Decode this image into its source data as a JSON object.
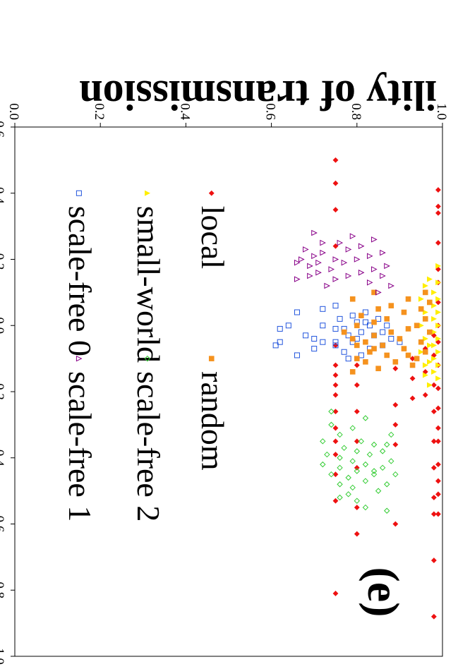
{
  "chart_data": {
    "type": "scatter",
    "orientation": "rotated-90-clockwise",
    "panel_label": "(e)",
    "ylabel": "ility of transmission",
    "xlabel": "",
    "xlim": [
      -0.6,
      1.0
    ],
    "ylim": [
      0.0,
      1.0
    ],
    "x_ticks": [
      "-0.6",
      "-0.4",
      "-0.2",
      "0.0",
      "0.2",
      "0.4",
      "0.6",
      "0.8",
      "1.0"
    ],
    "y_ticks": [
      "0.0",
      "0.2",
      "0.4",
      "0.6",
      "0.8",
      "1.0"
    ],
    "grid": false,
    "legend_position": "inside-lower-area",
    "series": [
      {
        "name": "local",
        "color": "#ee1111",
        "marker": "diamond-filled",
        "points": [
          [
            -0.41,
            0.99
          ],
          [
            -0.36,
            0.99
          ],
          [
            -0.34,
            0.99
          ],
          [
            -0.25,
            0.99
          ],
          [
            -0.17,
            0.99
          ],
          [
            -0.13,
            0.99
          ],
          [
            -0.07,
            0.99
          ],
          [
            0.0,
            0.99
          ],
          [
            0.05,
            0.99
          ],
          [
            0.12,
            0.99
          ],
          [
            0.19,
            0.99
          ],
          [
            0.25,
            0.99
          ],
          [
            0.31,
            0.99
          ],
          [
            0.35,
            0.99
          ],
          [
            0.42,
            0.99
          ],
          [
            0.47,
            0.99
          ],
          [
            0.51,
            0.99
          ],
          [
            0.57,
            0.99
          ],
          [
            0.03,
            0.98
          ],
          [
            0.09,
            0.98
          ],
          [
            0.18,
            0.98
          ],
          [
            0.26,
            0.98
          ],
          [
            0.35,
            0.98
          ],
          [
            0.43,
            0.98
          ],
          [
            0.52,
            0.98
          ],
          [
            0.57,
            0.98
          ],
          [
            0.71,
            0.98
          ],
          [
            0.88,
            0.98
          ],
          [
            0.07,
            0.96
          ],
          [
            0.14,
            0.96
          ],
          [
            0.21,
            0.96
          ],
          [
            0.1,
            0.93
          ],
          [
            0.16,
            0.93
          ],
          [
            0.22,
            0.93
          ],
          [
            0.13,
            0.89
          ],
          [
            0.24,
            0.89
          ],
          [
            0.3,
            0.89
          ],
          [
            0.36,
            0.89
          ],
          [
            0.6,
            0.89
          ],
          [
            0.12,
            0.8
          ],
          [
            0.18,
            0.8
          ],
          [
            0.26,
            0.8
          ],
          [
            0.35,
            0.8
          ],
          [
            0.43,
            0.8
          ],
          [
            0.55,
            0.8
          ],
          [
            0.63,
            0.8
          ],
          [
            -0.5,
            0.75
          ],
          [
            -0.43,
            0.75
          ],
          [
            -0.35,
            0.75
          ],
          [
            -0.24,
            0.75
          ],
          [
            0.06,
            0.75
          ],
          [
            0.12,
            0.75
          ],
          [
            0.15,
            0.75
          ],
          [
            0.18,
            0.75
          ],
          [
            0.21,
            0.75
          ],
          [
            0.26,
            0.75
          ],
          [
            0.31,
            0.75
          ],
          [
            0.35,
            0.75
          ],
          [
            0.39,
            0.75
          ],
          [
            0.45,
            0.75
          ],
          [
            0.53,
            0.75
          ],
          [
            0.81,
            0.75
          ]
        ]
      },
      {
        "name": "small-world",
        "color": "#ffee00",
        "marker": "triangle-filled",
        "points": [
          [
            -0.13,
            0.99
          ],
          [
            -0.1,
            0.98
          ],
          [
            -0.08,
            0.99
          ],
          [
            -0.06,
            0.98
          ],
          [
            -0.04,
            0.99
          ],
          [
            -0.02,
            0.98
          ],
          [
            0.0,
            0.99
          ],
          [
            0.02,
            0.98
          ],
          [
            0.04,
            0.99
          ],
          [
            0.06,
            0.98
          ],
          [
            0.08,
            0.99
          ],
          [
            0.1,
            0.98
          ],
          [
            0.12,
            0.99
          ],
          [
            0.14,
            0.98
          ],
          [
            0.16,
            0.99
          ],
          [
            0.18,
            0.97
          ],
          [
            -0.12,
            0.96
          ],
          [
            -0.08,
            0.95
          ],
          [
            -0.04,
            0.96
          ],
          [
            0.0,
            0.95
          ],
          [
            0.04,
            0.96
          ],
          [
            0.08,
            0.95
          ],
          [
            0.12,
            0.96
          ],
          [
            -0.14,
            0.97
          ],
          [
            0.15,
            0.96
          ],
          [
            -0.18,
            0.99
          ],
          [
            -0.02,
            0.96
          ],
          [
            0.06,
            0.97
          ],
          [
            0.11,
            0.97
          ]
        ]
      },
      {
        "name": "scale-free 0",
        "color": "#2255dd",
        "marker": "square-open",
        "points": [
          [
            0.04,
            0.88
          ],
          [
            0.06,
            0.86
          ],
          [
            0.03,
            0.84
          ],
          [
            0.0,
            0.83
          ],
          [
            -0.02,
            0.85
          ],
          [
            0.02,
            0.81
          ],
          [
            -0.04,
            0.82
          ],
          [
            0.05,
            0.79
          ],
          [
            0.07,
            0.83
          ],
          [
            0.09,
            0.81
          ],
          [
            0.01,
            0.77
          ],
          [
            -0.01,
            0.8
          ],
          [
            0.08,
            0.77
          ],
          [
            0.06,
            0.75
          ],
          [
            0.03,
            0.78
          ],
          [
            -0.03,
            0.79
          ],
          [
            0.0,
            0.87
          ],
          [
            0.05,
            0.9
          ],
          [
            0.02,
            0.86
          ],
          [
            -0.01,
            0.82
          ],
          [
            0.04,
            0.8
          ],
          [
            0.1,
            0.78
          ],
          [
            0.05,
            0.75
          ],
          [
            0.01,
            0.75
          ],
          [
            -0.02,
            0.76
          ],
          [
            0.05,
            0.72
          ],
          [
            0.07,
            0.7
          ],
          [
            0.04,
            0.7
          ],
          [
            0.0,
            0.72
          ],
          [
            0.03,
            0.68
          ],
          [
            0.09,
            0.66
          ],
          [
            -0.06,
            0.75
          ],
          [
            -0.05,
            0.72
          ],
          [
            0.0,
            0.64
          ],
          [
            0.01,
            0.62
          ],
          [
            0.05,
            0.62
          ],
          [
            0.06,
            0.61
          ],
          [
            -0.04,
            0.66
          ]
        ]
      },
      {
        "name": "random",
        "color": "#f5921e",
        "marker": "square-filled",
        "points": [
          [
            -0.1,
            0.96
          ],
          [
            -0.07,
            0.97
          ],
          [
            -0.05,
            0.95
          ],
          [
            -0.02,
            0.96
          ],
          [
            0.0,
            0.94
          ],
          [
            0.02,
            0.97
          ],
          [
            0.05,
            0.95
          ],
          [
            0.08,
            0.96
          ],
          [
            0.1,
            0.94
          ],
          [
            0.12,
            0.93
          ],
          [
            -0.08,
            0.92
          ],
          [
            -0.04,
            0.91
          ],
          [
            0.01,
            0.92
          ],
          [
            0.04,
            0.9
          ],
          [
            0.07,
            0.91
          ],
          [
            0.11,
            0.89
          ],
          [
            -0.06,
            0.88
          ],
          [
            -0.02,
            0.87
          ],
          [
            0.02,
            0.88
          ],
          [
            0.06,
            0.86
          ],
          [
            0.09,
            0.87
          ],
          [
            -0.01,
            0.84
          ],
          [
            0.03,
            0.84
          ],
          [
            0.05,
            0.82
          ],
          [
            0.08,
            0.83
          ],
          [
            0.11,
            0.82
          ],
          [
            -0.03,
            0.81
          ],
          [
            0.0,
            0.8
          ],
          [
            0.04,
            0.79
          ],
          [
            0.06,
            0.8
          ],
          [
            0.1,
            0.8
          ],
          [
            0.02,
            0.77
          ],
          [
            -0.08,
            0.79
          ],
          [
            0.07,
            0.84
          ],
          [
            -0.1,
            0.84
          ],
          [
            0.13,
            0.85
          ],
          [
            0.14,
            0.79
          ],
          [
            0.09,
            0.92
          ],
          [
            -0.05,
            0.85
          ]
        ]
      },
      {
        "name": "scale-free 2",
        "color": "#33cc33",
        "marker": "diamond-open",
        "points": [
          [
            0.33,
            0.88
          ],
          [
            0.36,
            0.87
          ],
          [
            0.38,
            0.86
          ],
          [
            0.41,
            0.88
          ],
          [
            0.43,
            0.86
          ],
          [
            0.45,
            0.89
          ],
          [
            0.48,
            0.87
          ],
          [
            0.5,
            0.85
          ],
          [
            0.36,
            0.84
          ],
          [
            0.39,
            0.83
          ],
          [
            0.42,
            0.82
          ],
          [
            0.45,
            0.84
          ],
          [
            0.47,
            0.82
          ],
          [
            0.35,
            0.81
          ],
          [
            0.38,
            0.8
          ],
          [
            0.41,
            0.79
          ],
          [
            0.44,
            0.8
          ],
          [
            0.46,
            0.78
          ],
          [
            0.49,
            0.79
          ],
          [
            0.37,
            0.77
          ],
          [
            0.4,
            0.76
          ],
          [
            0.43,
            0.76
          ],
          [
            0.48,
            0.76
          ],
          [
            0.51,
            0.78
          ],
          [
            0.53,
            0.8
          ],
          [
            0.55,
            0.82
          ],
          [
            0.45,
            0.74
          ],
          [
            0.39,
            0.73
          ],
          [
            0.42,
            0.72
          ],
          [
            0.35,
            0.72
          ],
          [
            0.3,
            0.74
          ],
          [
            0.33,
            0.76
          ],
          [
            0.26,
            0.74
          ],
          [
            0.31,
            0.79
          ],
          [
            0.44,
            0.84
          ],
          [
            0.52,
            0.76
          ],
          [
            0.56,
            0.87
          ],
          [
            0.28,
            0.82
          ]
        ]
      },
      {
        "name": "scale-free 1",
        "color": "#880088",
        "marker": "triangle-open",
        "points": [
          [
            -0.22,
            0.86
          ],
          [
            -0.18,
            0.87
          ],
          [
            -0.15,
            0.86
          ],
          [
            -0.12,
            0.88
          ],
          [
            -0.1,
            0.85
          ],
          [
            -0.26,
            0.84
          ],
          [
            -0.21,
            0.83
          ],
          [
            -0.17,
            0.84
          ],
          [
            -0.13,
            0.83
          ],
          [
            -0.24,
            0.81
          ],
          [
            -0.2,
            0.8
          ],
          [
            -0.16,
            0.81
          ],
          [
            -0.27,
            0.79
          ],
          [
            -0.23,
            0.78
          ],
          [
            -0.19,
            0.77
          ],
          [
            -0.15,
            0.78
          ],
          [
            -0.2,
            0.75
          ],
          [
            -0.17,
            0.74
          ],
          [
            -0.14,
            0.75
          ],
          [
            -0.25,
            0.76
          ],
          [
            -0.22,
            0.72
          ],
          [
            -0.19,
            0.71
          ],
          [
            -0.16,
            0.71
          ],
          [
            -0.25,
            0.72
          ],
          [
            -0.28,
            0.7
          ],
          [
            -0.21,
            0.7
          ],
          [
            -0.18,
            0.69
          ],
          [
            -0.15,
            0.69
          ],
          [
            -0.23,
            0.68
          ],
          [
            -0.19,
            0.66
          ],
          [
            -0.12,
            0.73
          ],
          [
            -0.14,
            0.66
          ],
          [
            -0.2,
            0.67
          ]
        ]
      }
    ]
  },
  "legend": {
    "items": [
      {
        "label": "local",
        "color": "#ee1111",
        "marker": "diamond-filled"
      },
      {
        "label": "small-world",
        "color": "#ffee00",
        "marker": "triangle-filled"
      },
      {
        "label": "scale-free 0",
        "color": "#2255dd",
        "marker": "square-open"
      },
      {
        "label": "random",
        "color": "#f5921e",
        "marker": "square-filled"
      },
      {
        "label": "scale-free 2",
        "color": "#33cc33",
        "marker": "diamond-open"
      },
      {
        "label": "scale-free 1",
        "color": "#880088",
        "marker": "triangle-open"
      }
    ]
  }
}
